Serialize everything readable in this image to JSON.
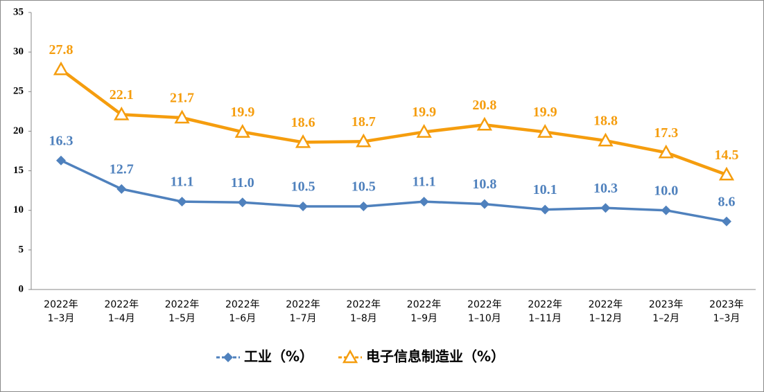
{
  "chart_data": {
    "type": "line",
    "categories": [
      "2022年\n1–3月",
      "2022年\n1–4月",
      "2022年\n1–5月",
      "2022年\n1–6月",
      "2022年\n1–7月",
      "2022年\n1–8月",
      "2022年\n1–9月",
      "2022年\n1–10月",
      "2022年\n1–11月",
      "2022年\n1–12月",
      "2023年\n1–2月",
      "2023年\n1–3月"
    ],
    "series": [
      {
        "name": "工业（%）",
        "color": "#4f81bd",
        "marker": "diamond",
        "values": [
          16.3,
          12.7,
          11.1,
          11.0,
          10.5,
          10.5,
          11.1,
          10.8,
          10.1,
          10.3,
          10.0,
          8.6
        ],
        "value_labels": [
          "16.3",
          "12.7",
          "11.1",
          "11.0",
          "10.5",
          "10.5",
          "11.1",
          "10.8",
          "10.1",
          "10.3",
          "10.0",
          "8.6"
        ]
      },
      {
        "name": "电子信息制造业（%）",
        "color": "#f59d0e",
        "marker": "triangle",
        "values": [
          27.8,
          22.1,
          21.7,
          19.9,
          18.6,
          18.7,
          19.9,
          20.8,
          19.9,
          18.8,
          17.3,
          14.5
        ],
        "value_labels": [
          "27.8",
          "22.1",
          "21.7",
          "19.9",
          "18.6",
          "18.7",
          "19.9",
          "20.8",
          "19.9",
          "18.8",
          "17.3",
          "14.5"
        ]
      }
    ],
    "ylim": [
      0,
      35
    ],
    "yticks": [
      0,
      5,
      10,
      15,
      20,
      25,
      30,
      35
    ],
    "grid": false,
    "legend": "bottom"
  }
}
